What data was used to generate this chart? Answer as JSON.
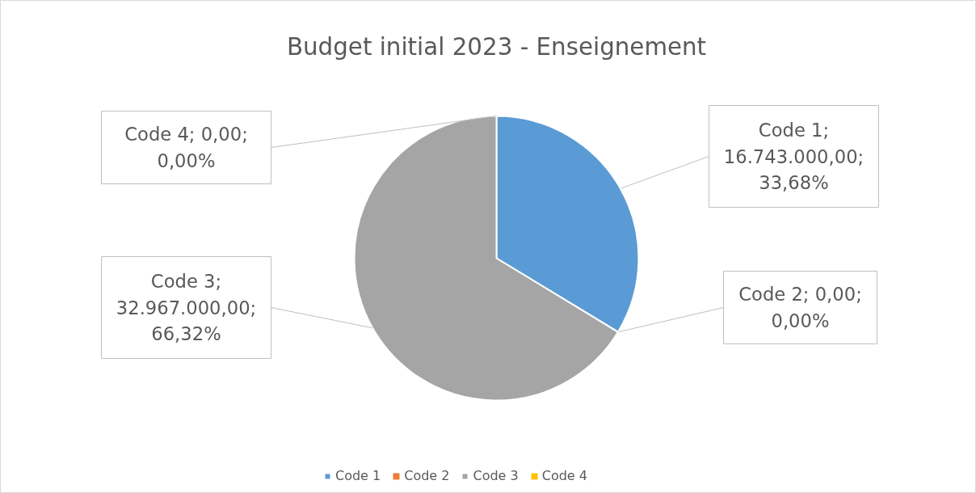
{
  "chart_data": {
    "type": "pie",
    "title": "Budget initial 2023 - Enseignement",
    "categories": [
      "Code 1",
      "Code 2",
      "Code 3",
      "Code 4"
    ],
    "values": [
      16743000,
      0,
      32967000,
      0
    ],
    "colors": [
      "#5b9bd5",
      "#ed7d31",
      "#a5a5a5",
      "#ffc000"
    ],
    "value_labels": [
      "Code 1; 16.743.000,00; 33,68%",
      "Code 2; 0,00; 0,00%",
      "Code 3; 32.967.000,00; 66,32%",
      "Code 4; 0,00; 0,00%"
    ],
    "legend": "bottom"
  }
}
